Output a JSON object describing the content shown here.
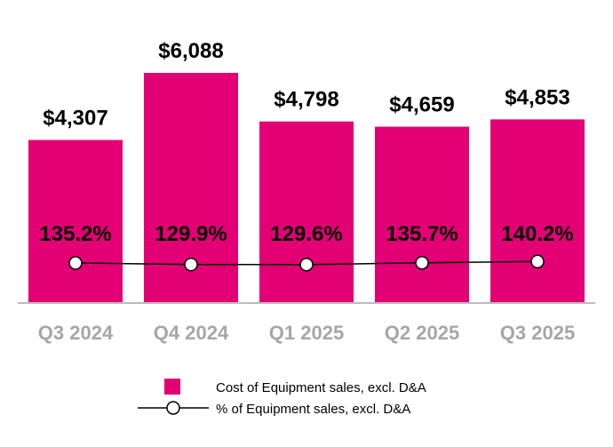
{
  "chart_data": {
    "type": "bar",
    "categories": [
      "Q3 2024",
      "Q4 2024",
      "Q1 2025",
      "Q2 2025",
      "Q3 2025"
    ],
    "series": [
      {
        "name": "Cost of Equipment sales, excl. D&A",
        "type": "bar",
        "values": [
          4307,
          6088,
          4798,
          4659,
          4853
        ],
        "labels": [
          "$4,307",
          "$6,088",
          "$4,798",
          "$4,659",
          "$4,853"
        ],
        "color": "#E20074"
      },
      {
        "name": "% of Equipment sales, excl. D&A",
        "type": "line",
        "axis": "secondary",
        "values": [
          135.2,
          129.9,
          129.6,
          135.7,
          140.2
        ],
        "labels": [
          "135.2%",
          "129.9%",
          "129.6%",
          "135.7%",
          "140.2%"
        ],
        "color": "#000000"
      }
    ],
    "ylim": [
      0,
      8000
    ],
    "y2lim": [
      0,
      1040
    ],
    "grid": false,
    "legend": "bottom",
    "tick_color": "#A6A6A6"
  }
}
